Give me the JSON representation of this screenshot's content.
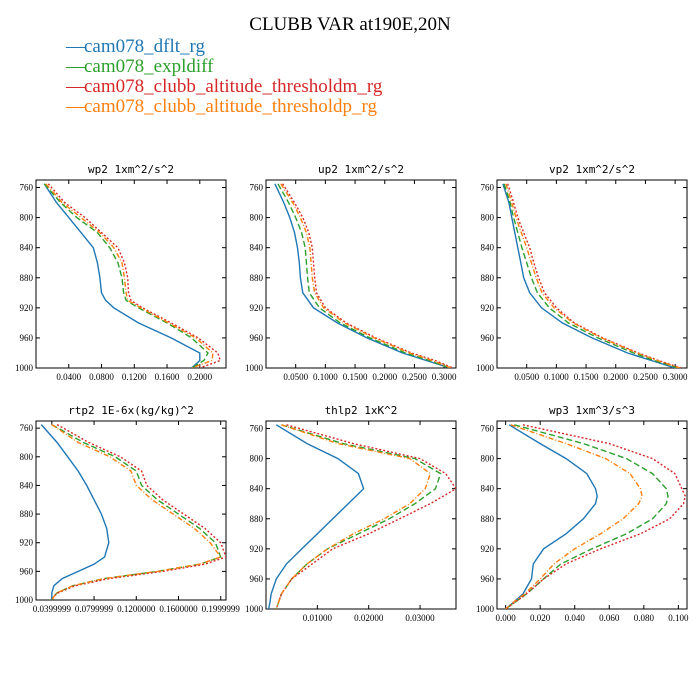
{
  "title": "CLUBB VAR at190E,20N",
  "legend": [
    {
      "label": "cam078_dflt_rg",
      "color": "#1f77b4",
      "dash": ""
    },
    {
      "label": "cam078_expldiff",
      "color": "#2ca02c",
      "dash": "6,3"
    },
    {
      "label": "cam078_clubb_altitude_thresholdm_rg",
      "color": "#d62728",
      "dash": "2,2"
    },
    {
      "label": "cam078_clubb_altitude_thresholdp_rg",
      "color": "#ff7f0e",
      "dash": "5,2,1,2"
    }
  ],
  "chart_data": [
    {
      "type": "line",
      "title": "wp2  1xm^2/s^2",
      "xlim": [
        0,
        0.232
      ],
      "ylim": [
        1000,
        750
      ],
      "yticks": [
        "760",
        "800",
        "840",
        "880",
        "920",
        "960",
        "1000"
      ],
      "xticks": [
        {
          "v": 0.04,
          "label": "0.0400"
        },
        {
          "v": 0.08,
          "label": "0.0800"
        },
        {
          "v": 0.12,
          "label": "0.1200"
        },
        {
          "v": 0.16,
          "label": "0.1600"
        },
        {
          "v": 0.2,
          "label": "0.2000"
        }
      ],
      "y": [
        755,
        780,
        800,
        820,
        840,
        860,
        880,
        900,
        910,
        920,
        940,
        960,
        980,
        990,
        1000
      ],
      "series": [
        {
          "values": [
            0.01,
            0.025,
            0.04,
            0.055,
            0.07,
            0.075,
            0.078,
            0.08,
            0.085,
            0.095,
            0.125,
            0.165,
            0.2,
            0.2,
            0.19
          ]
        },
        {
          "values": [
            0.01,
            0.03,
            0.05,
            0.075,
            0.09,
            0.1,
            0.105,
            0.107,
            0.11,
            0.125,
            0.16,
            0.19,
            0.21,
            0.205,
            0.19
          ]
        },
        {
          "values": [
            0.015,
            0.035,
            0.06,
            0.08,
            0.1,
            0.108,
            0.112,
            0.113,
            0.116,
            0.13,
            0.165,
            0.198,
            0.222,
            0.225,
            0.2
          ]
        },
        {
          "values": [
            0.012,
            0.032,
            0.055,
            0.078,
            0.095,
            0.105,
            0.108,
            0.11,
            0.112,
            0.128,
            0.162,
            0.195,
            0.216,
            0.215,
            0.19
          ]
        }
      ]
    },
    {
      "type": "line",
      "title": "up2  1xm^2/s^2",
      "xlim": [
        0,
        0.32
      ],
      "ylim": [
        1000,
        750
      ],
      "yticks": [
        "760",
        "800",
        "840",
        "880",
        "920",
        "960",
        "1000"
      ],
      "xticks": [
        {
          "v": 0.05,
          "label": "0.0500"
        },
        {
          "v": 0.1,
          "label": "0.1000"
        },
        {
          "v": 0.15,
          "label": "0.1500"
        },
        {
          "v": 0.2,
          "label": "0.2000"
        },
        {
          "v": 0.25,
          "label": "0.2500"
        },
        {
          "v": 0.3,
          "label": "0.3000"
        }
      ],
      "y": [
        755,
        780,
        800,
        820,
        840,
        860,
        880,
        900,
        920,
        940,
        960,
        980,
        990,
        1000
      ],
      "series": [
        {
          "values": [
            0.015,
            0.03,
            0.04,
            0.048,
            0.053,
            0.056,
            0.058,
            0.062,
            0.08,
            0.12,
            0.17,
            0.23,
            0.27,
            0.31
          ]
        },
        {
          "values": [
            0.02,
            0.038,
            0.05,
            0.06,
            0.066,
            0.068,
            0.07,
            0.073,
            0.09,
            0.125,
            0.175,
            0.235,
            0.275,
            0.31
          ]
        },
        {
          "values": [
            0.028,
            0.048,
            0.062,
            0.072,
            0.078,
            0.08,
            0.082,
            0.085,
            0.1,
            0.135,
            0.185,
            0.245,
            0.285,
            0.315
          ]
        },
        {
          "values": [
            0.025,
            0.045,
            0.058,
            0.068,
            0.074,
            0.076,
            0.078,
            0.082,
            0.097,
            0.132,
            0.182,
            0.242,
            0.28,
            0.312
          ]
        }
      ]
    },
    {
      "type": "line",
      "title": "vp2  1xm^2/s^2",
      "xlim": [
        0,
        0.32
      ],
      "ylim": [
        1000,
        750
      ],
      "yticks": [
        "760",
        "800",
        "840",
        "880",
        "920",
        "960",
        "1000"
      ],
      "xticks": [
        {
          "v": 0.05,
          "label": "0.0500"
        },
        {
          "v": 0.1,
          "label": "0.1000"
        },
        {
          "v": 0.15,
          "label": "0.1500"
        },
        {
          "v": 0.2,
          "label": "0.2000"
        },
        {
          "v": 0.25,
          "label": "0.2500"
        },
        {
          "v": 0.3,
          "label": "0.3000"
        }
      ],
      "y": [
        755,
        780,
        800,
        820,
        840,
        860,
        880,
        900,
        920,
        940,
        960,
        980,
        990,
        1000
      ],
      "series": [
        {
          "values": [
            0.01,
            0.02,
            0.025,
            0.03,
            0.035,
            0.04,
            0.045,
            0.055,
            0.075,
            0.11,
            0.16,
            0.22,
            0.26,
            0.3
          ]
        },
        {
          "values": [
            0.012,
            0.022,
            0.028,
            0.035,
            0.042,
            0.05,
            0.058,
            0.068,
            0.088,
            0.12,
            0.17,
            0.23,
            0.265,
            0.305
          ]
        },
        {
          "values": [
            0.018,
            0.028,
            0.035,
            0.045,
            0.055,
            0.062,
            0.07,
            0.08,
            0.1,
            0.13,
            0.178,
            0.238,
            0.272,
            0.31
          ]
        },
        {
          "values": [
            0.015,
            0.025,
            0.032,
            0.041,
            0.05,
            0.058,
            0.066,
            0.076,
            0.096,
            0.128,
            0.176,
            0.236,
            0.27,
            0.308
          ]
        }
      ]
    },
    {
      "type": "line",
      "title": "rtp2  1E-6x(kg/kg)^2",
      "xlim": [
        0.025,
        0.205
      ],
      "ylim": [
        1000,
        750
      ],
      "yticks": [
        "760",
        "800",
        "840",
        "880",
        "920",
        "960",
        "1000"
      ],
      "xticks": [
        {
          "v": 0.04,
          "label": "0.0399999"
        },
        {
          "v": 0.08,
          "label": "0.0799999"
        },
        {
          "v": 0.12,
          "label": "0.1200000"
        },
        {
          "v": 0.16,
          "label": "0.1600000"
        },
        {
          "v": 0.2,
          "label": "0.1999999"
        }
      ],
      "y": [
        755,
        780,
        800,
        820,
        840,
        860,
        880,
        900,
        920,
        940,
        950,
        960,
        970,
        980,
        990,
        995,
        1000
      ],
      "series": [
        {
          "values": [
            0.03,
            0.045,
            0.055,
            0.065,
            0.073,
            0.08,
            0.087,
            0.092,
            0.094,
            0.09,
            0.08,
            0.065,
            0.05,
            0.042,
            0.04,
            0.04,
            0.04
          ]
        },
        {
          "values": [
            0.04,
            0.07,
            0.1,
            0.12,
            0.125,
            0.14,
            0.16,
            0.18,
            0.195,
            0.2,
            0.18,
            0.14,
            0.09,
            0.06,
            0.045,
            0.042,
            0.04
          ]
        },
        {
          "values": [
            0.045,
            0.075,
            0.105,
            0.125,
            0.13,
            0.145,
            0.165,
            0.185,
            0.2,
            0.205,
            0.185,
            0.145,
            0.095,
            0.062,
            0.046,
            0.042,
            0.04
          ]
        },
        {
          "values": [
            0.04,
            0.065,
            0.095,
            0.115,
            0.12,
            0.135,
            0.155,
            0.175,
            0.19,
            0.2,
            0.18,
            0.14,
            0.09,
            0.06,
            0.045,
            0.042,
            0.04
          ]
        }
      ]
    },
    {
      "type": "line",
      "title": "thlp2  1xK^2",
      "xlim": [
        0,
        0.037
      ],
      "ylim": [
        1000,
        750
      ],
      "yticks": [
        "760",
        "800",
        "840",
        "880",
        "920",
        "960",
        "1000"
      ],
      "xticks": [
        {
          "v": 0.01,
          "label": "0.01000"
        },
        {
          "v": 0.02,
          "label": "0.02000"
        },
        {
          "v": 0.03,
          "label": "0.03000"
        }
      ],
      "y": [
        755,
        780,
        800,
        820,
        840,
        860,
        880,
        900,
        920,
        940,
        960,
        980,
        990,
        1000
      ],
      "series": [
        {
          "values": [
            0.002,
            0.008,
            0.014,
            0.018,
            0.019,
            0.016,
            0.013,
            0.01,
            0.007,
            0.004,
            0.002,
            0.001,
            0.0008,
            0.0005
          ]
        },
        {
          "values": [
            0.003,
            0.015,
            0.029,
            0.034,
            0.033,
            0.029,
            0.024,
            0.018,
            0.012,
            0.008,
            0.005,
            0.003,
            0.0025,
            0.002
          ]
        },
        {
          "values": [
            0.004,
            0.017,
            0.03,
            0.035,
            0.037,
            0.032,
            0.026,
            0.02,
            0.013,
            0.009,
            0.005,
            0.003,
            0.0025,
            0.002
          ]
        },
        {
          "values": [
            0.003,
            0.014,
            0.028,
            0.032,
            0.031,
            0.028,
            0.023,
            0.017,
            0.012,
            0.008,
            0.005,
            0.003,
            0.0025,
            0.002
          ]
        }
      ]
    },
    {
      "type": "line",
      "title": "wp3  1xm^3/s^3",
      "xlim": [
        -0.005,
        0.105
      ],
      "ylim": [
        1000,
        750
      ],
      "yticks": [
        "760",
        "800",
        "840",
        "880",
        "920",
        "960",
        "1000"
      ],
      "xticks": [
        {
          "v": 0.0,
          "label": "0.000"
        },
        {
          "v": 0.02,
          "label": "0.020"
        },
        {
          "v": 0.04,
          "label": "0.040"
        },
        {
          "v": 0.06,
          "label": "0.060"
        },
        {
          "v": 0.08,
          "label": "0.080"
        },
        {
          "v": 0.1,
          "label": "0.100"
        }
      ],
      "y": [
        755,
        780,
        800,
        820,
        840,
        850,
        860,
        880,
        900,
        920,
        940,
        960,
        980,
        990,
        1000
      ],
      "series": [
        {
          "values": [
            0.002,
            0.02,
            0.035,
            0.047,
            0.052,
            0.053,
            0.052,
            0.045,
            0.035,
            0.022,
            0.016,
            0.015,
            0.01,
            0.005,
            0.0
          ]
        },
        {
          "values": [
            0.005,
            0.045,
            0.07,
            0.085,
            0.093,
            0.094,
            0.093,
            0.085,
            0.07,
            0.05,
            0.032,
            0.022,
            0.012,
            0.006,
            0.0
          ]
        },
        {
          "values": [
            0.01,
            0.06,
            0.085,
            0.098,
            0.102,
            0.104,
            0.103,
            0.095,
            0.078,
            0.055,
            0.035,
            0.022,
            0.012,
            0.006,
            0.0
          ]
        },
        {
          "values": [
            0.003,
            0.035,
            0.058,
            0.072,
            0.078,
            0.079,
            0.077,
            0.068,
            0.055,
            0.04,
            0.028,
            0.02,
            0.011,
            0.005,
            0.0
          ]
        }
      ]
    }
  ]
}
